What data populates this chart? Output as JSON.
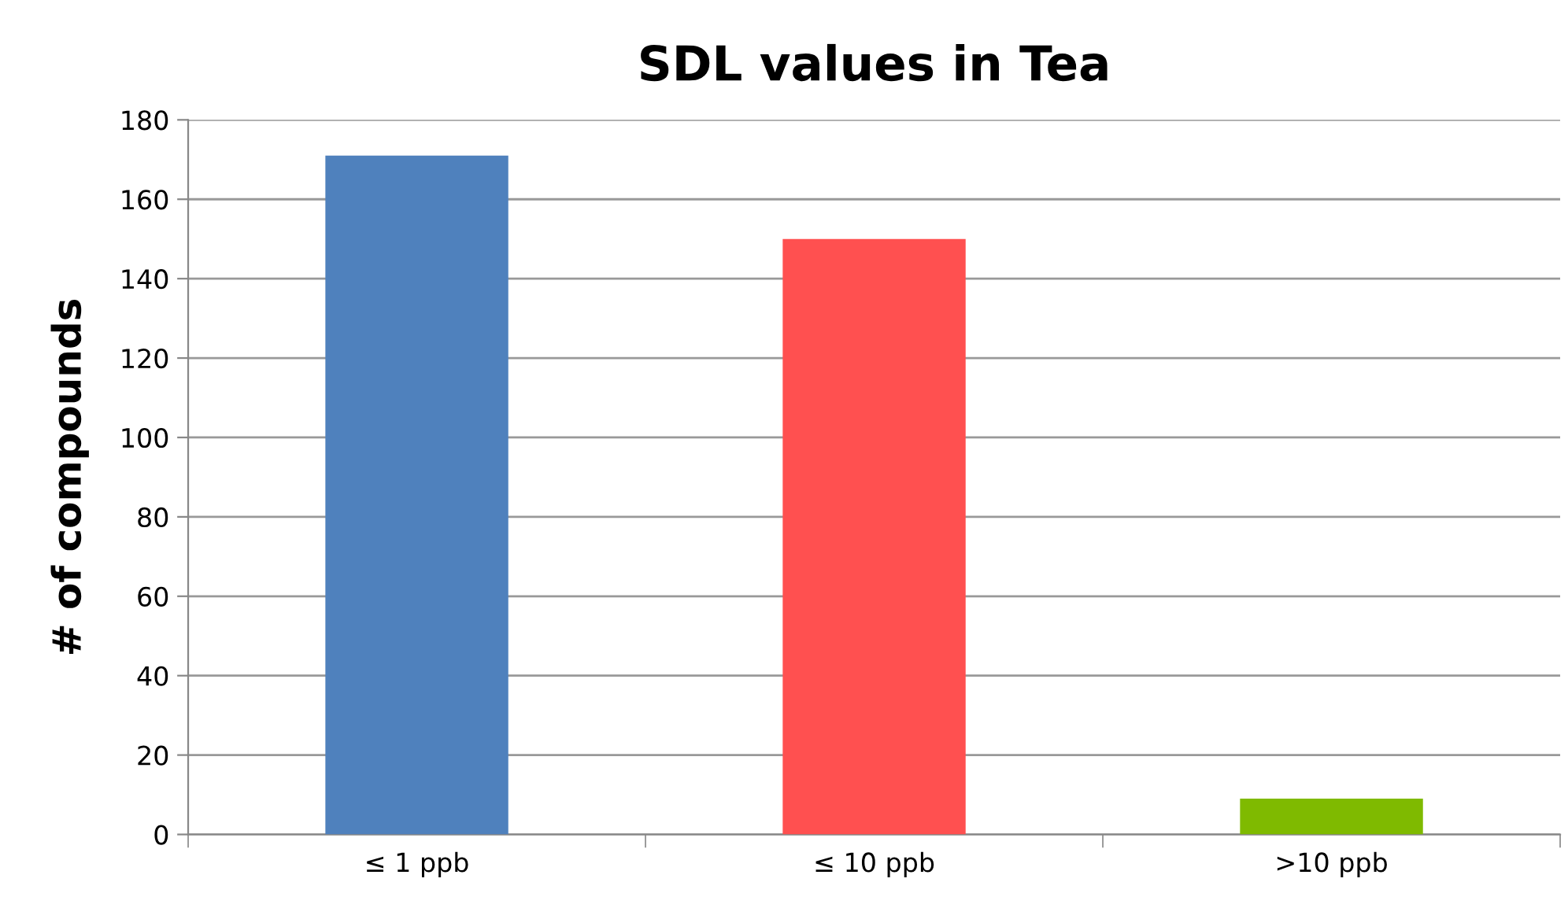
{
  "chart_data": {
    "type": "bar",
    "title": "SDL values in Tea",
    "ylabel": "# of compounds",
    "categories": [
      "≤ 1 ppb",
      "≤ 10 ppb",
      ">10 ppb"
    ],
    "values": [
      171,
      150,
      9
    ],
    "colors": [
      "#4f81bd",
      "#ff5050",
      "#7fba00"
    ],
    "ylim": [
      0,
      180
    ],
    "yticks": [
      0,
      20,
      40,
      60,
      80,
      100,
      120,
      140,
      160,
      180
    ],
    "grid": "y",
    "legend": false
  }
}
